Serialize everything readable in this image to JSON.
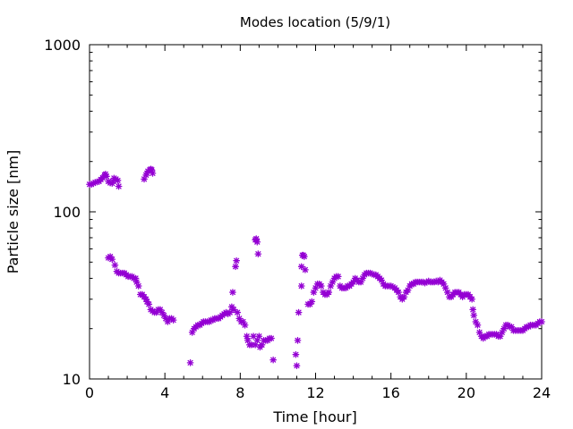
{
  "chart_data": {
    "type": "scatter",
    "title": "Modes location (5/9/1)",
    "xlabel": "Time [hour]",
    "ylabel": "Particle size [nm]",
    "xlim": [
      0,
      24
    ],
    "ylim": [
      10,
      1000
    ],
    "yscale": "log",
    "xticks": [
      0,
      4,
      8,
      12,
      16,
      20,
      24
    ],
    "xtick_labels": [
      "0",
      "4",
      "8",
      "12",
      "16",
      "20",
      "24"
    ],
    "yticks": [
      10,
      100,
      1000
    ],
    "ytick_labels": [
      "10",
      "100",
      "1000"
    ],
    "grid": false,
    "legend": "none",
    "marker_color": "#9400d3",
    "marker": "star",
    "series": [
      {
        "points": [
          [
            0.0,
            146
          ],
          [
            0.1,
            146
          ],
          [
            0.2,
            148
          ],
          [
            0.3,
            150
          ],
          [
            0.4,
            151
          ],
          [
            0.5,
            152
          ],
          [
            0.6,
            156
          ],
          [
            0.7,
            160
          ],
          [
            0.8,
            166
          ],
          [
            0.85,
            168
          ],
          [
            0.9,
            163
          ],
          [
            1.0,
            152
          ],
          [
            1.1,
            149
          ],
          [
            1.2,
            148
          ],
          [
            1.25,
            152
          ],
          [
            1.3,
            159
          ],
          [
            1.4,
            157
          ],
          [
            1.5,
            154
          ],
          [
            1.55,
            142
          ],
          [
            2.9,
            157
          ],
          [
            3.0,
            166
          ],
          [
            3.05,
            170
          ],
          [
            3.1,
            175
          ],
          [
            3.2,
            178
          ],
          [
            3.25,
            180
          ],
          [
            3.3,
            178
          ],
          [
            3.35,
            170
          ],
          [
            1.0,
            53
          ],
          [
            1.1,
            54
          ],
          [
            1.2,
            52
          ],
          [
            1.35,
            48
          ],
          [
            1.45,
            44
          ],
          [
            1.55,
            43
          ],
          [
            1.65,
            43
          ],
          [
            1.75,
            43
          ],
          [
            1.85,
            43
          ],
          [
            1.95,
            42
          ],
          [
            2.05,
            41
          ],
          [
            2.15,
            41
          ],
          [
            2.25,
            41
          ],
          [
            2.35,
            40
          ],
          [
            2.45,
            40
          ],
          [
            2.5,
            38
          ],
          [
            2.6,
            36
          ],
          [
            2.7,
            32
          ],
          [
            2.8,
            32
          ],
          [
            2.9,
            31
          ],
          [
            3.0,
            30
          ],
          [
            3.05,
            29
          ],
          [
            3.15,
            28
          ],
          [
            3.25,
            26
          ],
          [
            3.35,
            25.5
          ],
          [
            3.45,
            25
          ],
          [
            3.55,
            25
          ],
          [
            3.65,
            26
          ],
          [
            3.75,
            26
          ],
          [
            3.85,
            25
          ],
          [
            3.95,
            24
          ],
          [
            4.05,
            23
          ],
          [
            4.15,
            22
          ],
          [
            4.25,
            23
          ],
          [
            4.35,
            23
          ],
          [
            4.45,
            22.5
          ],
          [
            5.35,
            12.5
          ],
          [
            5.45,
            19
          ],
          [
            5.55,
            20
          ],
          [
            5.65,
            20.5
          ],
          [
            5.75,
            21
          ],
          [
            5.85,
            21
          ],
          [
            5.95,
            21.5
          ],
          [
            6.05,
            22
          ],
          [
            6.15,
            22
          ],
          [
            6.25,
            22
          ],
          [
            6.35,
            22
          ],
          [
            6.45,
            22.5
          ],
          [
            6.55,
            22.5
          ],
          [
            6.65,
            23
          ],
          [
            6.75,
            23
          ],
          [
            6.85,
            23
          ],
          [
            6.95,
            23.5
          ],
          [
            7.05,
            24
          ],
          [
            7.15,
            24.5
          ],
          [
            7.25,
            25
          ],
          [
            7.35,
            24.5
          ],
          [
            7.45,
            25
          ],
          [
            7.55,
            27
          ],
          [
            7.6,
            33
          ],
          [
            7.65,
            26
          ],
          [
            7.75,
            47
          ],
          [
            7.8,
            51
          ],
          [
            7.85,
            25
          ],
          [
            7.95,
            23
          ],
          [
            8.05,
            22
          ],
          [
            8.15,
            22
          ],
          [
            8.25,
            21
          ],
          [
            8.35,
            18
          ],
          [
            8.4,
            17
          ],
          [
            8.5,
            16
          ],
          [
            8.6,
            16
          ],
          [
            8.7,
            18
          ],
          [
            8.8,
            68
          ],
          [
            8.85,
            69
          ],
          [
            8.9,
            66
          ],
          [
            8.95,
            56
          ],
          [
            8.8,
            16
          ],
          [
            8.9,
            17
          ],
          [
            9.0,
            18
          ],
          [
            9.05,
            15.5
          ],
          [
            9.15,
            16
          ],
          [
            9.25,
            17
          ],
          [
            9.35,
            17
          ],
          [
            9.45,
            17
          ],
          [
            9.55,
            17.5
          ],
          [
            9.65,
            17.5
          ],
          [
            9.75,
            13
          ],
          [
            10.95,
            14
          ],
          [
            11.0,
            12
          ],
          [
            11.05,
            17
          ],
          [
            11.1,
            25
          ],
          [
            11.25,
            47
          ],
          [
            11.3,
            55
          ],
          [
            11.35,
            55
          ],
          [
            11.4,
            54
          ],
          [
            11.45,
            45
          ],
          [
            11.25,
            36
          ],
          [
            11.6,
            28
          ],
          [
            11.7,
            28
          ],
          [
            11.8,
            29
          ],
          [
            11.9,
            33
          ],
          [
            12.0,
            35
          ],
          [
            12.1,
            37
          ],
          [
            12.2,
            37
          ],
          [
            12.3,
            36
          ],
          [
            12.4,
            33
          ],
          [
            12.5,
            32
          ],
          [
            12.6,
            32
          ],
          [
            12.7,
            33
          ],
          [
            12.8,
            36
          ],
          [
            12.9,
            38
          ],
          [
            13.0,
            40
          ],
          [
            13.1,
            41
          ],
          [
            13.2,
            41
          ],
          [
            13.3,
            36
          ],
          [
            13.4,
            35
          ],
          [
            13.5,
            35
          ],
          [
            13.6,
            35
          ],
          [
            13.7,
            36
          ],
          [
            13.8,
            36
          ],
          [
            13.9,
            37
          ],
          [
            14.0,
            38
          ],
          [
            14.1,
            40
          ],
          [
            14.2,
            39
          ],
          [
            14.3,
            38
          ],
          [
            14.4,
            38
          ],
          [
            14.5,
            40
          ],
          [
            14.6,
            42
          ],
          [
            14.7,
            43
          ],
          [
            14.8,
            43
          ],
          [
            14.9,
            43
          ],
          [
            15.0,
            42.5
          ],
          [
            15.1,
            42
          ],
          [
            15.2,
            42
          ],
          [
            15.3,
            41
          ],
          [
            15.4,
            40
          ],
          [
            15.5,
            39
          ],
          [
            15.6,
            37
          ],
          [
            15.7,
            36
          ],
          [
            15.8,
            36
          ],
          [
            15.9,
            36
          ],
          [
            16.0,
            36
          ],
          [
            16.1,
            35.5
          ],
          [
            16.2,
            35
          ],
          [
            16.3,
            34
          ],
          [
            16.4,
            33
          ],
          [
            16.5,
            31
          ],
          [
            16.6,
            30
          ],
          [
            16.7,
            31
          ],
          [
            16.8,
            33
          ],
          [
            16.9,
            34
          ],
          [
            17.0,
            36
          ],
          [
            17.1,
            37
          ],
          [
            17.2,
            37
          ],
          [
            17.3,
            38
          ],
          [
            17.4,
            38
          ],
          [
            17.5,
            38
          ],
          [
            17.6,
            38
          ],
          [
            17.7,
            38
          ],
          [
            17.8,
            37.5
          ],
          [
            17.9,
            38
          ],
          [
            18.0,
            38.5
          ],
          [
            18.1,
            38
          ],
          [
            18.2,
            38
          ],
          [
            18.3,
            38
          ],
          [
            18.4,
            38.5
          ],
          [
            18.5,
            38
          ],
          [
            18.6,
            39
          ],
          [
            18.7,
            38
          ],
          [
            18.8,
            37
          ],
          [
            18.9,
            35
          ],
          [
            19.0,
            33
          ],
          [
            19.1,
            31
          ],
          [
            19.2,
            31
          ],
          [
            19.3,
            32
          ],
          [
            19.4,
            33
          ],
          [
            19.5,
            33
          ],
          [
            19.6,
            33
          ],
          [
            19.7,
            32
          ],
          [
            19.8,
            31
          ],
          [
            19.9,
            32
          ],
          [
            20.0,
            32
          ],
          [
            20.1,
            32
          ],
          [
            20.2,
            31
          ],
          [
            20.3,
            30
          ],
          [
            20.35,
            26
          ],
          [
            20.4,
            24
          ],
          [
            20.5,
            22
          ],
          [
            20.6,
            21
          ],
          [
            20.7,
            19
          ],
          [
            20.8,
            18
          ],
          [
            20.9,
            17.5
          ],
          [
            21.0,
            18
          ],
          [
            21.1,
            18
          ],
          [
            21.2,
            18.5
          ],
          [
            21.3,
            18.5
          ],
          [
            21.4,
            18.5
          ],
          [
            21.5,
            18.5
          ],
          [
            21.6,
            18.5
          ],
          [
            21.7,
            18
          ],
          [
            21.8,
            18
          ],
          [
            21.9,
            19
          ],
          [
            22.0,
            20
          ],
          [
            22.1,
            21
          ],
          [
            22.2,
            21
          ],
          [
            22.3,
            20.5
          ],
          [
            22.4,
            20.5
          ],
          [
            22.5,
            19.5
          ],
          [
            22.6,
            19.5
          ],
          [
            22.7,
            19.5
          ],
          [
            22.8,
            19.5
          ],
          [
            22.9,
            19.5
          ],
          [
            23.0,
            19.5
          ],
          [
            23.1,
            20
          ],
          [
            23.2,
            20.5
          ],
          [
            23.3,
            20.5
          ],
          [
            23.4,
            21
          ],
          [
            23.5,
            21
          ],
          [
            23.6,
            21
          ],
          [
            23.7,
            21
          ],
          [
            23.8,
            21.5
          ],
          [
            23.9,
            22
          ],
          [
            24.0,
            22
          ]
        ]
      }
    ]
  }
}
